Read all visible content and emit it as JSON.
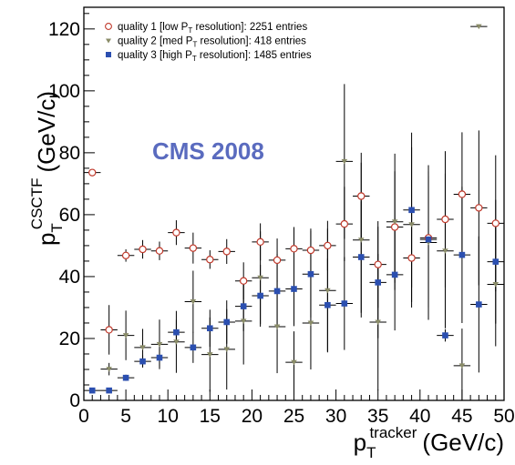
{
  "chart_data": {
    "type": "scatter",
    "annotation": "CMS 2008",
    "xlabel": {
      "base": "p",
      "sub": "T",
      "sup": "tracker",
      "unit": "(GeV/c)"
    },
    "ylabel": {
      "base": "p",
      "sub": "T",
      "sup": "CSCTF",
      "unit": "(GeV/c)"
    },
    "xlim": [
      0,
      50
    ],
    "ylim": [
      0,
      127
    ],
    "x_ticks": [
      0,
      5,
      10,
      15,
      20,
      25,
      30,
      35,
      40,
      45,
      50
    ],
    "y_ticks": [
      0,
      20,
      40,
      60,
      80,
      100,
      120
    ],
    "grid": false,
    "legend_position": "top-left",
    "series": [
      {
        "name": "quality 1 [low P_T resolution]: 2251 entries",
        "legend": {
          "pre": "quality 1 [low  P",
          "sub": "T",
          "post": " resolution]: 2251 entries"
        },
        "marker": "open-circle",
        "color": "#c0392b",
        "points": [
          [
            1,
            73.6,
            0
          ],
          [
            3,
            22.8,
            8
          ],
          [
            5,
            46.8,
            2
          ],
          [
            7,
            48.8,
            3
          ],
          [
            9,
            48.3,
            3
          ],
          [
            11,
            54.2,
            4
          ],
          [
            13,
            49.2,
            5
          ],
          [
            15,
            45.5,
            3
          ],
          [
            17,
            48.1,
            4
          ],
          [
            19,
            38.6,
            6
          ],
          [
            21,
            51.2,
            6
          ],
          [
            23,
            45.3,
            7
          ],
          [
            25,
            49.0,
            7
          ],
          [
            27,
            48.5,
            7
          ],
          [
            29,
            50.0,
            8
          ],
          [
            31,
            57.0,
            12
          ],
          [
            33,
            66.0,
            14
          ],
          [
            35,
            43.9,
            14
          ],
          [
            37,
            56.0,
            18
          ],
          [
            39,
            46.0,
            16
          ],
          [
            41,
            52.5,
            20
          ],
          [
            43,
            58.5,
            22
          ],
          [
            45,
            66.6,
            20
          ],
          [
            47,
            62.2,
            25
          ],
          [
            49,
            57.2,
            22
          ]
        ]
      },
      {
        "name": "quality 2 [med P_T resolution]: 418 entries",
        "legend": {
          "pre": "quality 2 [med P",
          "sub": "T",
          "post": " resolution]: 418 entries"
        },
        "marker": "triangle-down",
        "color": "#8a8c68",
        "points": [
          [
            3,
            10.1,
            2
          ],
          [
            5,
            21.0,
            8
          ],
          [
            7,
            17.1,
            6
          ],
          [
            9,
            18.1,
            8
          ],
          [
            11,
            18.9,
            10
          ],
          [
            13,
            31.9,
            10
          ],
          [
            15,
            14.8,
            12
          ],
          [
            17,
            16.5,
            13
          ],
          [
            19,
            25.6,
            14
          ],
          [
            21,
            39.6,
            15
          ],
          [
            23,
            23.8,
            15
          ],
          [
            25,
            12.3,
            10
          ],
          [
            27,
            25.0,
            15
          ],
          [
            29,
            35.5,
            20
          ],
          [
            31,
            77.2,
            25
          ],
          [
            33,
            51.8,
            25
          ],
          [
            35,
            25.3,
            22
          ],
          [
            37,
            57.7,
            22
          ],
          [
            39,
            56.8,
            25
          ],
          [
            41,
            51.0,
            25
          ],
          [
            43,
            48.3,
            25
          ],
          [
            45,
            11.2,
            12
          ],
          [
            47,
            120.8,
            0
          ],
          [
            49,
            37.5,
            20
          ]
        ]
      },
      {
        "name": "quality 3 [high P_T resolution]: 1485 entries",
        "legend": {
          "pre": "quality 3 [high P",
          "sub": "T",
          "post": " resolution]: 1485 entries"
        },
        "marker": "filled-square",
        "color": "#2b4fb0",
        "points": [
          [
            1,
            3.2,
            0
          ],
          [
            3,
            3.2,
            0
          ],
          [
            5,
            7.3,
            1
          ],
          [
            7,
            12.6,
            2
          ],
          [
            9,
            13.8,
            3
          ],
          [
            11,
            22.0,
            4
          ],
          [
            13,
            17.1,
            5
          ],
          [
            15,
            23.3,
            6
          ],
          [
            17,
            25.3,
            7
          ],
          [
            19,
            30.4,
            8
          ],
          [
            21,
            33.8,
            10
          ],
          [
            23,
            35.3,
            12
          ],
          [
            25,
            36.0,
            12
          ],
          [
            27,
            40.8,
            14
          ],
          [
            29,
            30.8,
            15
          ],
          [
            31,
            31.3,
            15
          ],
          [
            33,
            46.3,
            18
          ],
          [
            35,
            38.1,
            18
          ],
          [
            37,
            40.6,
            18
          ],
          [
            39,
            61.5,
            25
          ],
          [
            41,
            52.0,
            22
          ],
          [
            43,
            21.0,
            2
          ],
          [
            45,
            47.0,
            22
          ],
          [
            47,
            31.0,
            22
          ],
          [
            49,
            44.8,
            20
          ]
        ]
      }
    ]
  }
}
